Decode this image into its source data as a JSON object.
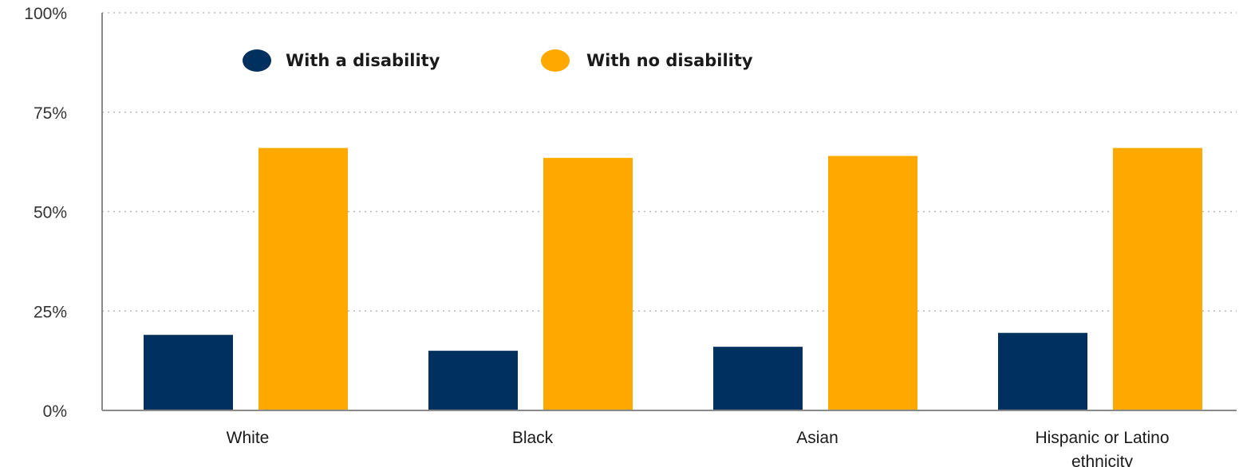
{
  "chart_data": {
    "type": "bar",
    "title": "",
    "xlabel": "",
    "ylabel": "",
    "categories": [
      "White",
      "Black",
      "Asian",
      "Hispanic or Latino ethnicity"
    ],
    "category_lines": [
      [
        "White"
      ],
      [
        "Black"
      ],
      [
        "Asian"
      ],
      [
        "Hispanic or Latino",
        "ethnicity"
      ]
    ],
    "series": [
      {
        "name": "With a disability",
        "color": "#00305e",
        "values": [
          19,
          15,
          16,
          19.5
        ]
      },
      {
        "name": "With no disability",
        "color": "#ffa800",
        "values": [
          66,
          63.5,
          64,
          66
        ]
      }
    ],
    "ylim": [
      0,
      100
    ],
    "yticks": [
      0,
      25,
      50,
      75,
      100
    ],
    "ytick_labels": [
      "0%",
      "25%",
      "50%",
      "75%",
      "100%"
    ],
    "grid": true,
    "legend_position": "top-left"
  }
}
